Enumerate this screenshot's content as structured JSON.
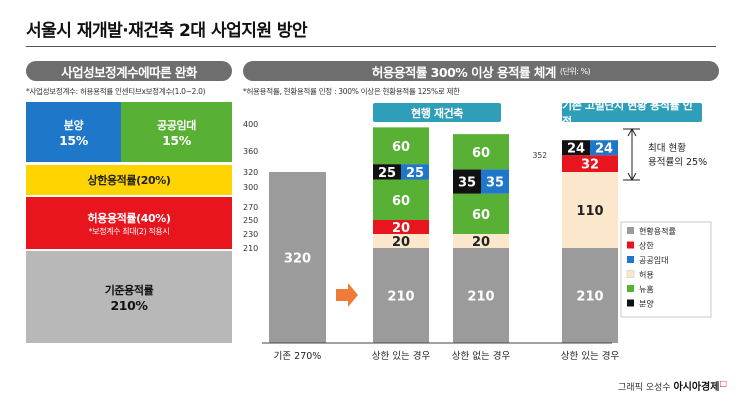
{
  "header": {
    "title": "서울시 재개발·재건축 2대 사업지원 방안"
  },
  "left_panel": {
    "heading": "사업성보정계수에따른 완화",
    "note": "*사업성보정계수: 허용용적률 인센티브x보정계수(1.0~2.0)",
    "boxes": {
      "sale": {
        "label": "분양",
        "value": "15%",
        "color": "#1f77c9"
      },
      "public_rental": {
        "label": "공공임대",
        "value": "15%",
        "color": "#58b034"
      },
      "upper_limit": {
        "label": "상한용적률(20%)",
        "color": "#ffd400"
      },
      "allowed": {
        "label": "허용용적률(40%)",
        "sub": "*보정계수 최대(2) 적용시",
        "color": "#e8141e"
      },
      "base": {
        "label": "기준용적률",
        "value": "210%",
        "color": "#b8b8b8"
      }
    }
  },
  "right_panel": {
    "heading": "허용용적률 300% 이상 용적률 체계",
    "heading_unit": "(단위: %)",
    "note": "*허용용적률, 현황용적률 인정 : 300% 이상은 현황용적률 125%로 제한",
    "tag_current": "현행 재건축",
    "tag_density": "기존 고밀단지 현황 용적률 인정",
    "annotation": "최대 현황 용적률의 25%",
    "arrow_color": "#f07a3a"
  },
  "chart_data": {
    "type": "bar",
    "stacked": true,
    "ylim": [
      0,
      400
    ],
    "yticks": [
      210,
      230,
      250,
      270,
      300,
      320,
      360,
      400
    ],
    "extra_tick": 352,
    "categories": [
      "기존 270%",
      "상한 있는 경우",
      "상한 없는 경우",
      "상한 있는 경우"
    ],
    "bars": [
      {
        "segments": [
          {
            "series": "현황용적률",
            "value": 320,
            "label": "320"
          }
        ]
      },
      {
        "segments": [
          {
            "series": "기준",
            "value": 210,
            "label": "210"
          },
          {
            "series": "허용",
            "value": 20,
            "label": "20"
          },
          {
            "series": "상한",
            "value": 20,
            "label": "20"
          },
          {
            "series": "분양",
            "value": 25,
            "label": "25"
          },
          {
            "series": "공공임대",
            "value": 25,
            "label": "25"
          },
          {
            "series": "뉴홈",
            "value": 60,
            "label": "60"
          }
        ]
      },
      {
        "segments": [
          {
            "series": "기준",
            "value": 210,
            "label": "210"
          },
          {
            "series": "허용",
            "value": 20,
            "label": "20"
          },
          {
            "series": "분양",
            "value": 35,
            "label": "35"
          },
          {
            "series": "공공임대",
            "value": 35,
            "label": "35"
          },
          {
            "series": "뉴홈",
            "value": 60,
            "label": "60"
          }
        ]
      },
      {
        "segments": [
          {
            "series": "기준",
            "value": 210,
            "label": "210"
          },
          {
            "series": "허용",
            "value": 110,
            "label": "110"
          },
          {
            "series": "상한",
            "value": 32,
            "label": "32"
          },
          {
            "series": "분양",
            "value": 24,
            "label": "24"
          },
          {
            "series": "공공임대",
            "value": 24,
            "label": "24"
          }
        ]
      }
    ],
    "colors": {
      "현황용적률": "#9b9b9b",
      "기준": "#9b9b9b",
      "허용": "#fbe8cc",
      "상한": "#e8141e",
      "공공임대": "#1f77c9",
      "뉴홈": "#58b034",
      "분양": "#111111"
    },
    "legend": [
      {
        "name": "현황용적률",
        "color": "#9b9b9b"
      },
      {
        "name": "상한",
        "color": "#e8141e"
      },
      {
        "name": "공공임대",
        "color": "#1f77c9"
      },
      {
        "name": "허용",
        "color": "#fbe8cc"
      },
      {
        "name": "뉴홈",
        "color": "#58b034"
      },
      {
        "name": "분양",
        "color": "#111111"
      }
    ],
    "legend_position": "right"
  },
  "footer": {
    "credit": "그래픽 오성수",
    "brand": "아시아경제"
  }
}
